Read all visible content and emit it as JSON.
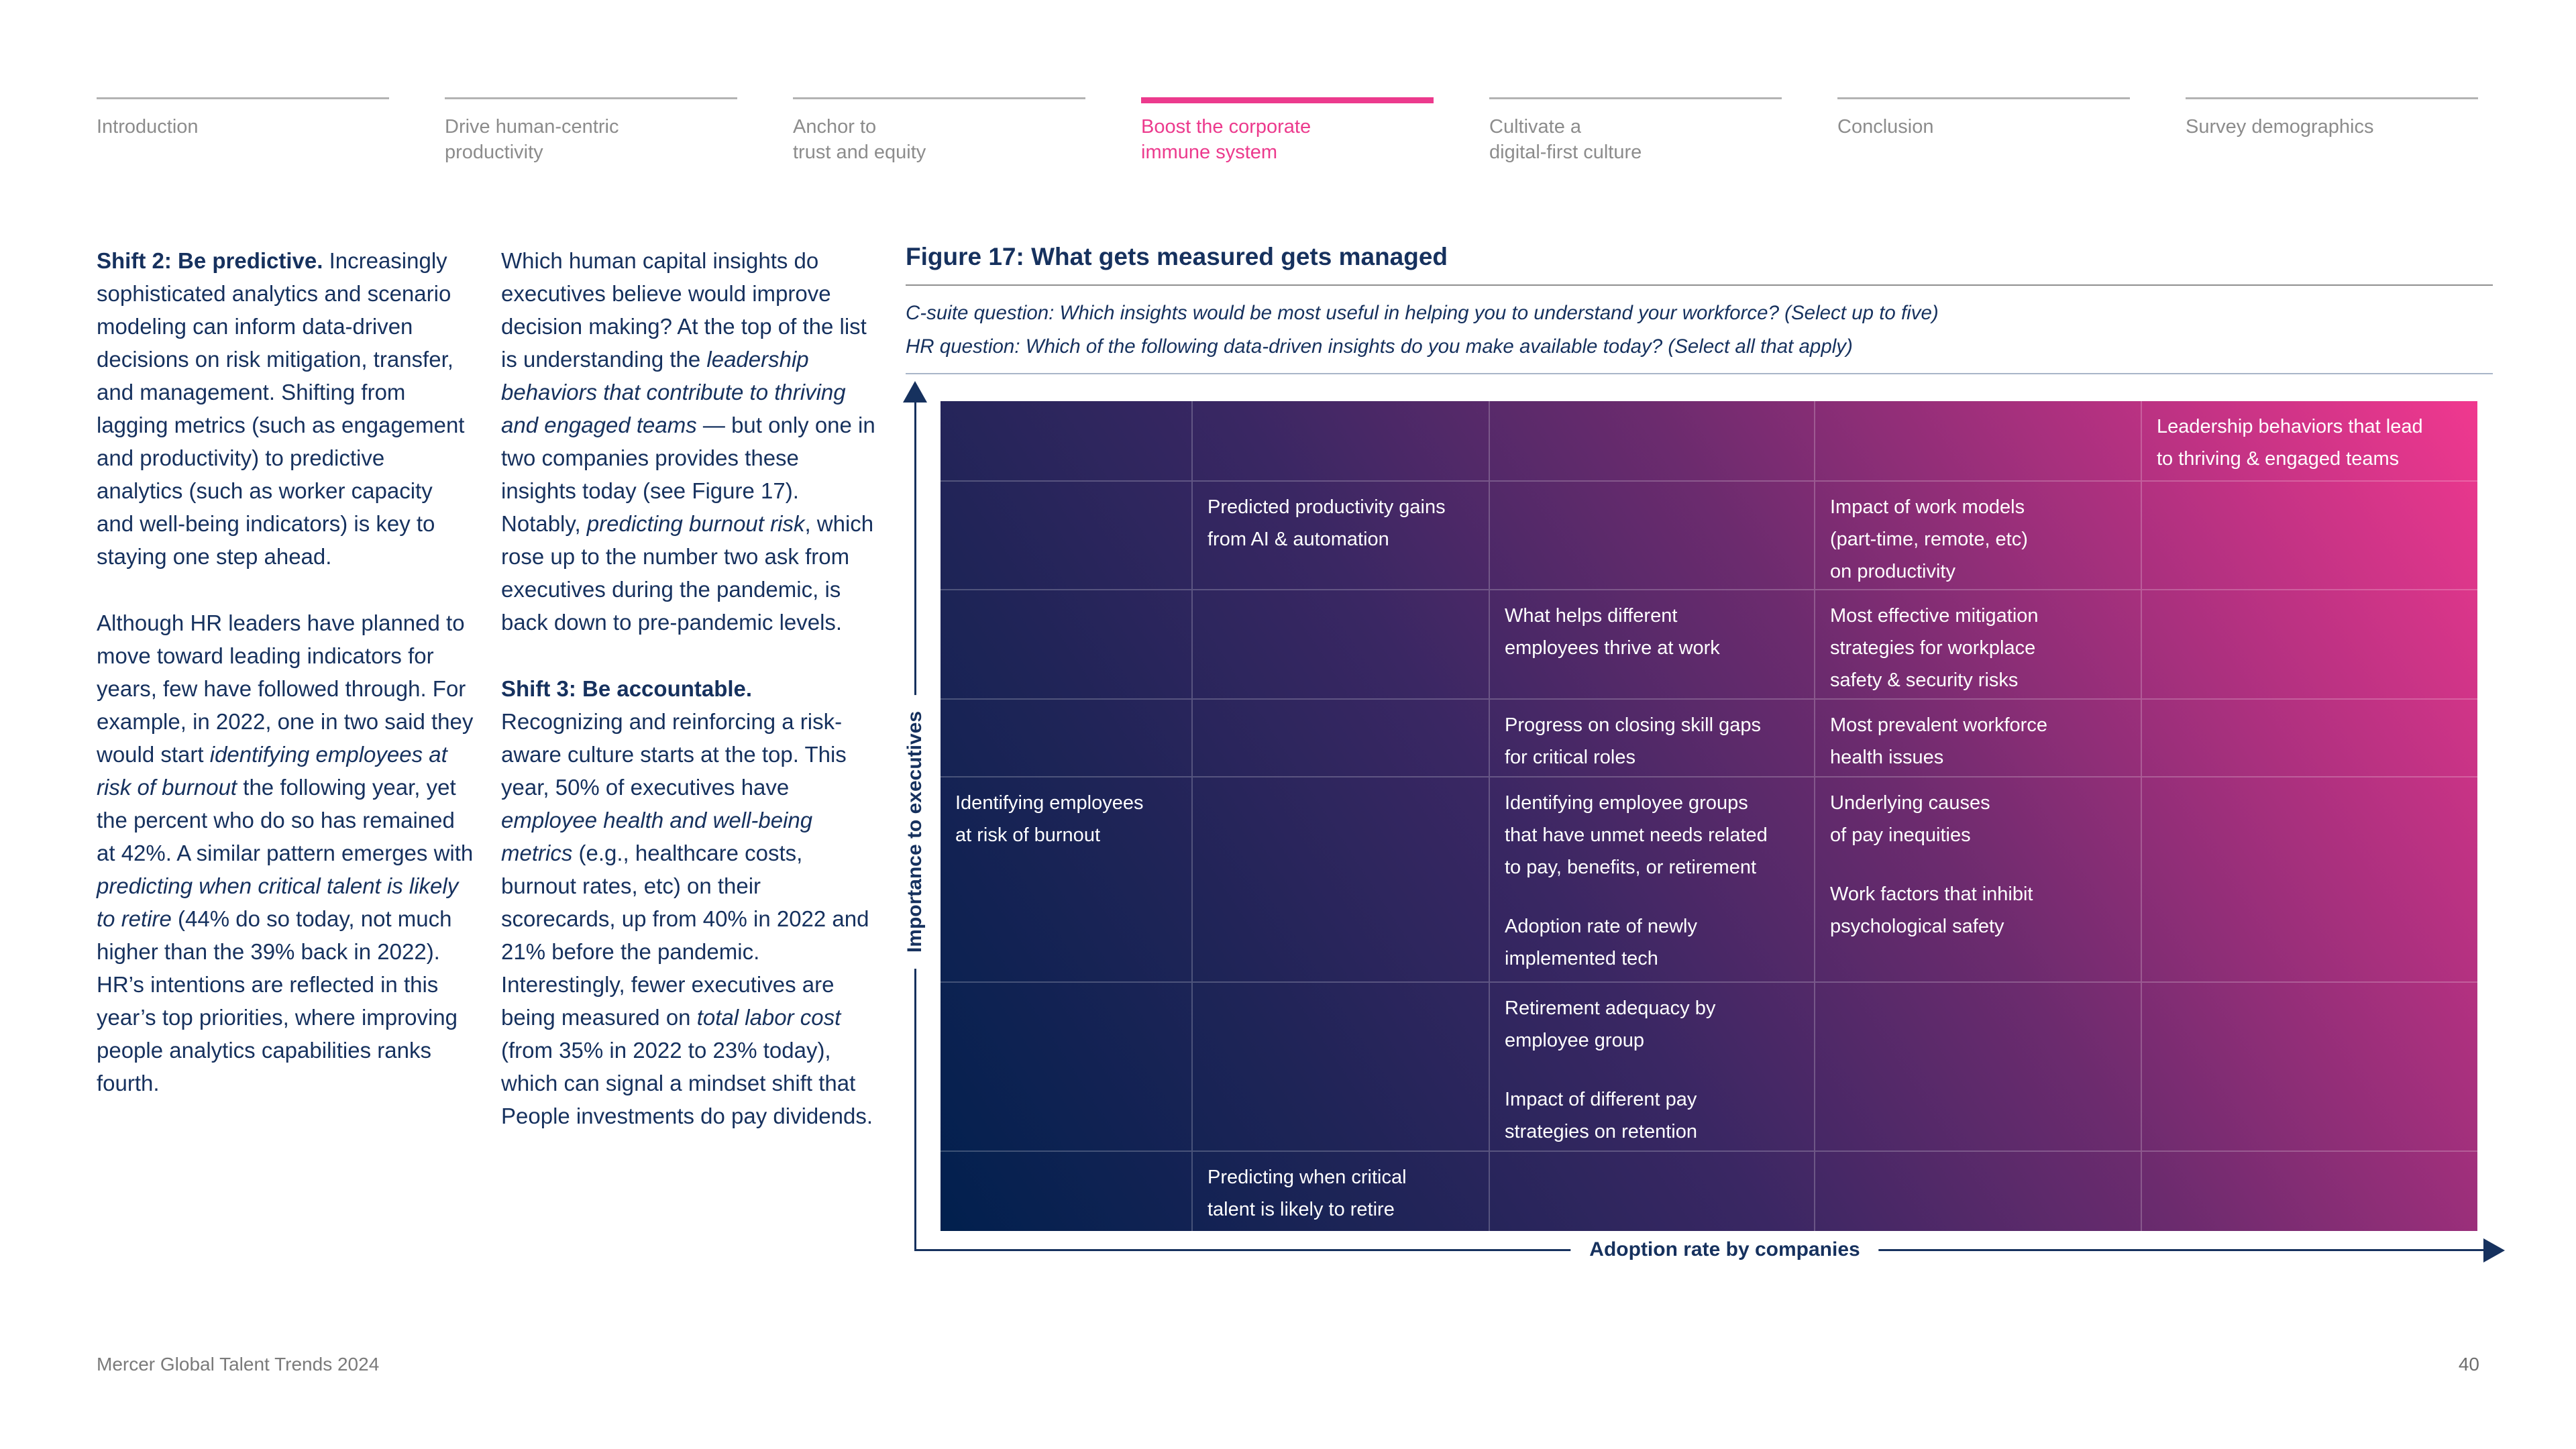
{
  "nav": {
    "tabs": [
      {
        "label": "Introduction",
        "active": false
      },
      {
        "label": "Drive human-centric\nproductivity",
        "active": false
      },
      {
        "label": "Anchor to\ntrust and equity",
        "active": false
      },
      {
        "label": "Boost the corporate\nimmune system",
        "active": true
      },
      {
        "label": "Cultivate a\ndigital-first culture",
        "active": false
      },
      {
        "label": "Conclusion",
        "active": false
      },
      {
        "label": "Survey demographics",
        "active": false
      }
    ]
  },
  "article": {
    "col1": {
      "p1": [
        {
          "t": "Shift 2: Be predictive.",
          "s": "b"
        },
        {
          "t": " Increasingly sophisticated analytics and scenario modeling can inform data-driven decisions on risk mitigation, transfer, and management. Shifting from lagging metrics (such as engagement and productivity) to predictive analytics (such as worker capacity and well-being indicators) is key to staying one step ahead."
        }
      ],
      "p2": [
        {
          "t": "Although HR leaders have planned to move toward leading indicators for years, few have followed through. For example, in 2022, one in two said they would start "
        },
        {
          "t": "identifying employees at risk of burnout",
          "s": "i"
        },
        {
          "t": " the following year, yet the percent who do so has remained at 42%. A similar pattern emerges with "
        },
        {
          "t": "predicting when critical talent is likely to retire",
          "s": "i"
        },
        {
          "t": " (44% do so today, not much higher than the 39% back in 2022). HR’s intentions are reflected in this year’s top priorities, where improving people analytics capabilities ranks fourth."
        }
      ]
    },
    "col2": {
      "p1": [
        {
          "t": "Which human capital insights do executives believe would improve decision making? At the top of the list is understanding the "
        },
        {
          "t": "leadership behaviors that contribute to thriving and engaged teams",
          "s": "i"
        },
        {
          "t": " — but only one in two companies provides these insights today (see Figure 17). Notably, "
        },
        {
          "t": "predicting burnout risk",
          "s": "i"
        },
        {
          "t": ", which rose up to the number two ask from executives during the pandemic, is back down to pre-pandemic levels."
        }
      ],
      "p2": [
        {
          "t": "Shift 3: Be accountable.",
          "s": "b"
        },
        {
          "t": " Recognizing and reinforcing a risk-aware culture starts at the top. This year, 50% of executives have "
        },
        {
          "t": "employee health and well-being metrics",
          "s": "i"
        },
        {
          "t": " (e.g., healthcare costs, burnout rates, etc) on their scorecards, up from 40% in 2022 and 21% before the pandemic. Interestingly, fewer executives are being measured on "
        },
        {
          "t": "total labor cost",
          "s": "i"
        },
        {
          "t": " (from 35% in 2022 to 23% today), which can signal a mindset shift that People investments do pay dividends."
        }
      ]
    }
  },
  "figure": {
    "type": "matrix",
    "title": "Figure 17: What gets measured gets managed",
    "questions": [
      "C-suite question: Which insights would be most useful in helping you to understand your workforce? (Select up to five)",
      "HR question: Which of the following data-driven insights do you make available today? (Select all that apply)"
    ],
    "y_axis_label": "Importance to executives",
    "x_axis_label": "Adoption rate by companies",
    "grid": {
      "rows": 7,
      "cols": 5
    },
    "cells": [
      {
        "row": 1,
        "col": 5,
        "items": [
          "Leadership behaviors that lead\nto thriving & engaged teams"
        ]
      },
      {
        "row": 2,
        "col": 2,
        "items": [
          "Predicted productivity gains\nfrom AI & automation"
        ]
      },
      {
        "row": 2,
        "col": 4,
        "items": [
          "Impact of work models\n(part-time, remote, etc)\non productivity"
        ]
      },
      {
        "row": 3,
        "col": 3,
        "items": [
          "What helps different\nemployees thrive at work"
        ]
      },
      {
        "row": 3,
        "col": 4,
        "items": [
          "Most effective mitigation\nstrategies for workplace\nsafety & security risks"
        ]
      },
      {
        "row": 4,
        "col": 3,
        "items": [
          "Progress on closing skill gaps\nfor critical roles"
        ]
      },
      {
        "row": 4,
        "col": 4,
        "items": [
          "Most prevalent workforce\nhealth issues"
        ]
      },
      {
        "row": 5,
        "col": 1,
        "items": [
          "Identifying employees\nat risk of burnout"
        ]
      },
      {
        "row": 5,
        "col": 3,
        "items": [
          "Identifying employee groups\nthat have unmet needs related\nto pay, benefits, or retirement",
          "Adoption rate of newly\nimplemented tech"
        ]
      },
      {
        "row": 5,
        "col": 4,
        "items": [
          "Underlying causes\nof pay inequities",
          "Work factors that inhibit\npsychological safety"
        ]
      },
      {
        "row": 6,
        "col": 3,
        "items": [
          "Retirement adequacy by\nemployee group",
          "Impact of different pay\nstrategies on retention"
        ]
      },
      {
        "row": 7,
        "col": 2,
        "items": [
          "Predicting when critical\ntalent is likely to retire"
        ]
      }
    ]
  },
  "footer": {
    "left": "Mercer Global Talent Trends 2024",
    "page": "40"
  },
  "colors": {
    "accent_pink": "#ec3a8d",
    "navy_text": "#16315e",
    "gradient_navy": "#01204e",
    "gradient_pink": "#f0388f",
    "nav_inactive": "#8c8c8c",
    "footer_gray": "#7a7a7a"
  }
}
